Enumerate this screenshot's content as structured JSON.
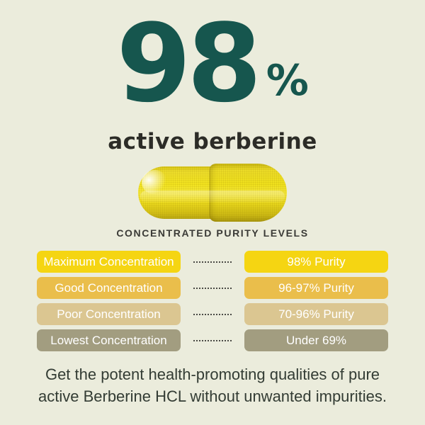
{
  "theme": {
    "background": "#EBECDC",
    "headline_color": "#16564E",
    "subtitle_color": "#2C2C27",
    "section_title_color": "#3A3A36",
    "footer_color": "#333C34",
    "pill_text_color": "#FFFFFF",
    "connector_color": "#4B4B46",
    "capsule_yellow": "#F1E01C",
    "capsule_yellow_light": "#F8EE49",
    "capsule_yellow_dark": "#C9B513"
  },
  "header": {
    "number": "98",
    "percent_sign": "%",
    "subtitle": "active berberine"
  },
  "capsule_icon": "yellow-berberine-capsule",
  "section_title": "CONCENTRATED PURITY LEVELS",
  "purity_table": {
    "rows": [
      {
        "label": "Maximum Concentration",
        "value": "98% Purity",
        "color": "#F5D512"
      },
      {
        "label": "Good Concentration",
        "value": "96-97% Purity",
        "color": "#EABE4B"
      },
      {
        "label": "Poor Concentration",
        "value": "70-96% Purity",
        "color": "#DBC691"
      },
      {
        "label": "Lowest Concentration",
        "value": "Under 69%",
        "color": "#A29D80"
      }
    ]
  },
  "footer": {
    "line1": "Get the potent health-promoting qualities of pure",
    "line2": "active Berberine HCL without unwanted impurities."
  }
}
